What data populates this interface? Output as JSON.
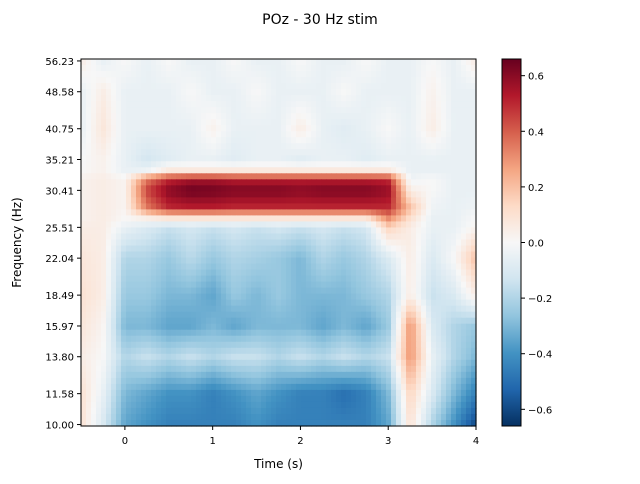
{
  "chart_data": {
    "type": "heatmap",
    "title": "POz - 30 Hz stim",
    "xlabel": "Time (s)",
    "ylabel": "Frequency (Hz)",
    "xlim": [
      -0.5,
      4
    ],
    "ylim": [
      10.0,
      56.23
    ],
    "yscale": "log",
    "x_ticks": [
      "0",
      "1",
      "2",
      "3",
      "4"
    ],
    "y_ticks": [
      "10.00",
      "11.58",
      "13.80",
      "15.97",
      "18.49",
      "22.04",
      "25.51",
      "30.41",
      "35.21",
      "40.75",
      "48.58",
      "56.23"
    ],
    "colormap": "RdBu_r",
    "clim": [
      -0.66,
      0.66
    ],
    "colorbar_ticks": [
      "−0.6",
      "−0.4",
      "−0.2",
      "0.0",
      "0.2",
      "0.4",
      "0.6"
    ],
    "colorbar_tick_values": [
      -0.6,
      -0.4,
      -0.2,
      0.0,
      0.2,
      0.4,
      0.6
    ],
    "grid": false,
    "times": [
      -0.5,
      -0.25,
      0,
      0.25,
      0.5,
      0.75,
      1,
      1.25,
      1.5,
      1.75,
      2,
      2.25,
      2.5,
      2.75,
      3,
      3.25,
      3.5,
      3.75,
      4
    ],
    "frequencies": [
      56.23,
      48.58,
      40.75,
      35.21,
      33.5,
      32,
      30.41,
      28,
      26.5,
      25.51,
      22.04,
      18.49,
      15.97,
      13.8,
      11.58,
      10.0
    ],
    "values": [
      [
        0.05,
        -0.05,
        0,
        -0.05,
        0,
        -0.05,
        -0.05,
        0,
        -0.05,
        -0.05,
        0,
        -0.05,
        -0.05,
        0,
        -0.05,
        -0.05,
        0,
        -0.05,
        0.05
      ],
      [
        -0.05,
        0.05,
        -0.05,
        -0.05,
        -0.05,
        0,
        -0.05,
        -0.05,
        0,
        -0.05,
        -0.05,
        -0.05,
        0,
        -0.05,
        -0.05,
        -0.05,
        0.03,
        -0.05,
        -0.05
      ],
      [
        -0.05,
        0.08,
        -0.05,
        -0.05,
        -0.05,
        -0.05,
        0.03,
        -0.05,
        -0.05,
        -0.05,
        0.05,
        -0.05,
        -0.08,
        -0.05,
        0,
        -0.05,
        0.05,
        -0.05,
        -0.05
      ],
      [
        0,
        0.03,
        -0.05,
        -0.12,
        -0.08,
        -0.05,
        -0.05,
        -0.08,
        -0.05,
        -0.05,
        -0.08,
        -0.05,
        -0.05,
        -0.08,
        -0.05,
        -0.05,
        -0.05,
        -0.05,
        -0.05
      ],
      [
        0,
        0.03,
        -0.05,
        -0.05,
        0.05,
        0.05,
        0.05,
        0.05,
        0.05,
        0.05,
        0.05,
        0.05,
        0.05,
        0.05,
        0.05,
        -0.05,
        -0.05,
        -0.05,
        -0.05
      ],
      [
        0.03,
        0.05,
        0.02,
        0.35,
        0.5,
        0.55,
        0.55,
        0.52,
        0.52,
        0.52,
        0.52,
        0.52,
        0.52,
        0.52,
        0.5,
        -0.03,
        0,
        -0.05,
        -0.05
      ],
      [
        0.03,
        0.05,
        0.02,
        0.45,
        0.6,
        0.65,
        0.64,
        0.62,
        0.62,
        0.62,
        0.6,
        0.62,
        0.62,
        0.62,
        0.58,
        0.05,
        0,
        -0.05,
        -0.05
      ],
      [
        0.03,
        0.05,
        0.02,
        0.35,
        0.5,
        0.52,
        0.52,
        0.5,
        0.5,
        0.5,
        0.5,
        0.5,
        0.5,
        0.5,
        0.5,
        0.2,
        -0.03,
        -0.05,
        -0.03
      ],
      [
        0.03,
        0.05,
        0,
        0.02,
        0.05,
        0.05,
        0.05,
        0.05,
        0.05,
        0.05,
        0.05,
        0.05,
        0.05,
        0.05,
        0.3,
        0.1,
        -0.05,
        -0.05,
        0
      ],
      [
        0.05,
        0.05,
        -0.05,
        -0.1,
        -0.15,
        -0.12,
        -0.15,
        -0.12,
        -0.15,
        -0.12,
        -0.15,
        -0.12,
        -0.15,
        -0.12,
        0.15,
        0.05,
        -0.05,
        -0.05,
        0.02
      ],
      [
        0.08,
        0.05,
        -0.2,
        -0.2,
        -0.25,
        -0.18,
        -0.25,
        -0.2,
        -0.22,
        -0.25,
        -0.3,
        -0.2,
        -0.25,
        -0.2,
        -0.1,
        0.05,
        -0.1,
        0,
        0.2
      ],
      [
        0.1,
        0.05,
        -0.25,
        -0.25,
        -0.3,
        -0.3,
        -0.35,
        -0.25,
        -0.3,
        -0.25,
        -0.3,
        -0.3,
        -0.3,
        -0.25,
        -0.2,
        0.05,
        -0.15,
        -0.1,
        0.05
      ],
      [
        0.08,
        0.02,
        -0.3,
        -0.3,
        -0.35,
        -0.35,
        -0.3,
        -0.35,
        -0.3,
        -0.3,
        -0.3,
        -0.35,
        -0.3,
        -0.35,
        -0.25,
        0.3,
        -0.1,
        -0.2,
        -0.25
      ],
      [
        0.05,
        0,
        -0.2,
        -0.15,
        -0.2,
        -0.15,
        -0.2,
        -0.15,
        -0.15,
        -0.2,
        -0.15,
        -0.2,
        -0.15,
        -0.2,
        -0.15,
        0.3,
        -0.05,
        -0.2,
        -0.3
      ],
      [
        0.1,
        -0.05,
        -0.3,
        -0.35,
        -0.4,
        -0.4,
        -0.45,
        -0.4,
        -0.35,
        -0.4,
        -0.45,
        -0.45,
        -0.5,
        -0.45,
        -0.3,
        0.15,
        -0.1,
        -0.3,
        -0.45
      ],
      [
        0.1,
        -0.1,
        -0.35,
        -0.4,
        -0.45,
        -0.45,
        -0.45,
        -0.45,
        -0.4,
        -0.45,
        -0.45,
        -0.45,
        -0.45,
        -0.45,
        -0.35,
        0.1,
        -0.2,
        -0.4,
        -0.6
      ]
    ],
    "colormap_stops": [
      "#053061",
      "#2166ac",
      "#4393c3",
      "#92c5de",
      "#d1e5f0",
      "#f7f7f7",
      "#fddbc7",
      "#f4a582",
      "#d6604d",
      "#b2182b",
      "#67001f"
    ]
  }
}
